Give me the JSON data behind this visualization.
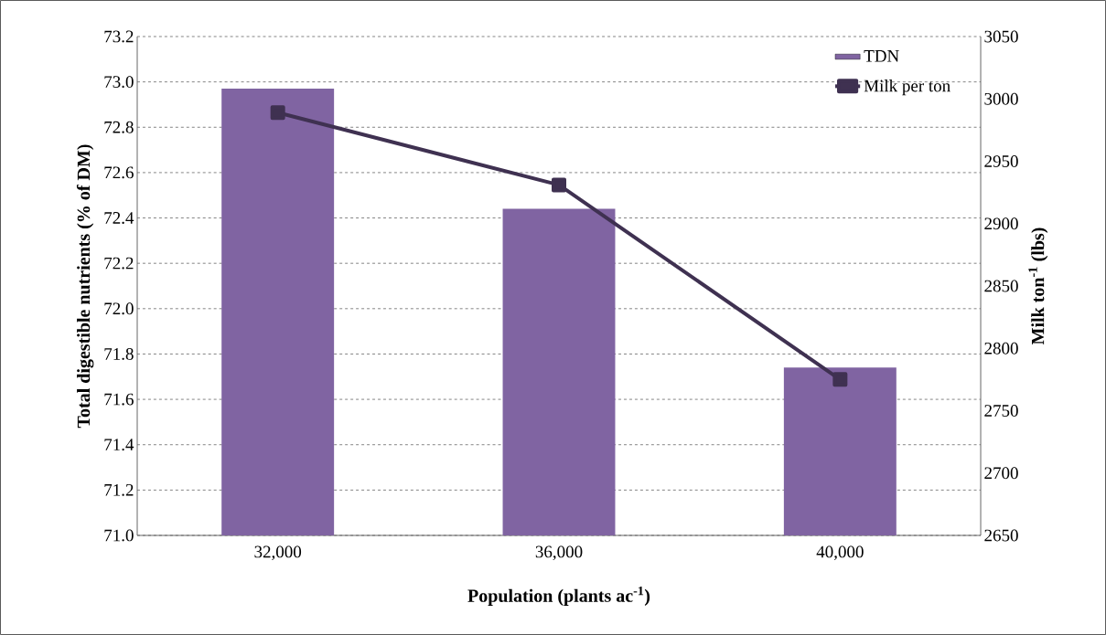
{
  "chart_data": {
    "type": "bar",
    "xlabel": "Population (plants ac$^{-1}$)",
    "ylabel": "Total digestible nutrients (% of DM)",
    "y2label": "Milk ton$^{-1}$ (lbs)",
    "categories": [
      "32,000",
      "36,000",
      "40,000"
    ],
    "series": [
      {
        "name": "TDN",
        "color": "#8064a2",
        "values": [
          72.97,
          72.44,
          71.74
        ]
      },
      {
        "name": "Milk per ton",
        "type": "line",
        "axis": "y2",
        "color": "#3f3151",
        "values": [
          2989,
          2931,
          2775
        ]
      }
    ],
    "ylim": [
      71.0,
      73.2
    ],
    "yticks": [
      {
        "value": 71.0,
        "label": "71.0"
      },
      71.2,
      71.4,
      71.6,
      71.8,
      {
        "value": 72.0,
        "label": "72.0"
      },
      72.2,
      72.4,
      72.6,
      72.8,
      {
        "value": 73.0,
        "label": "73.0"
      },
      73.2
    ],
    "y2lim": [
      2650,
      3050
    ],
    "y2ticks": [
      2650,
      2700,
      2750,
      2800,
      2850,
      2900,
      2950,
      3000,
      3050
    ],
    "grid": "y",
    "legend": "top right",
    "marker": "square"
  }
}
